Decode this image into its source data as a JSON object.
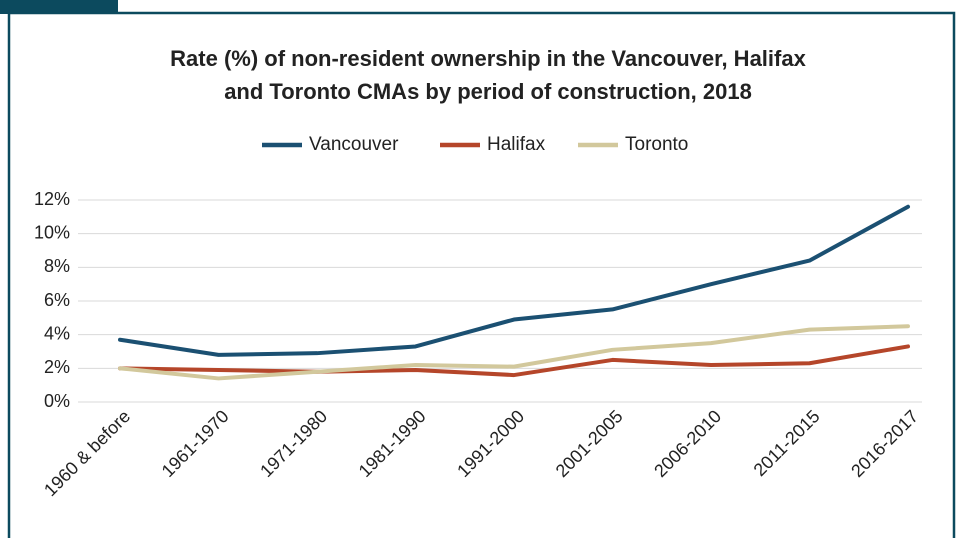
{
  "chart_data": {
    "type": "line",
    "title": [
      "Rate (%) of non-resident ownership in the Vancouver, Halifax",
      "and Toronto CMAs by period of construction, 2018"
    ],
    "categories": [
      "1960 & before",
      "1961-1970",
      "1971-1980",
      "1981-1990",
      "1991-2000",
      "2001-2005",
      "2006-2010",
      "2011-2015",
      "2016-2017"
    ],
    "series": [
      {
        "name": "Vancouver",
        "color": "#1b5072",
        "values": [
          3.7,
          2.8,
          2.9,
          3.3,
          4.9,
          5.5,
          7.0,
          8.4,
          11.6
        ]
      },
      {
        "name": "Halifax",
        "color": "#b5462a",
        "values": [
          2.0,
          1.9,
          1.8,
          1.9,
          1.6,
          2.5,
          2.2,
          2.3,
          3.3
        ]
      },
      {
        "name": "Toronto",
        "color": "#d2c89c",
        "values": [
          2.0,
          1.4,
          1.8,
          2.2,
          2.1,
          3.1,
          3.5,
          4.3,
          4.5
        ]
      }
    ],
    "ylim": [
      0,
      12
    ],
    "yticks": [
      {
        "value": 0,
        "label": "0%"
      },
      {
        "value": 2,
        "label": "2%"
      },
      {
        "value": 4,
        "label": "4%"
      },
      {
        "value": 6,
        "label": "6%"
      },
      {
        "value": 8,
        "label": "8%"
      },
      {
        "value": 10,
        "label": "10%"
      },
      {
        "value": 12,
        "label": "12%"
      }
    ],
    "grid": true,
    "legend": "top"
  }
}
